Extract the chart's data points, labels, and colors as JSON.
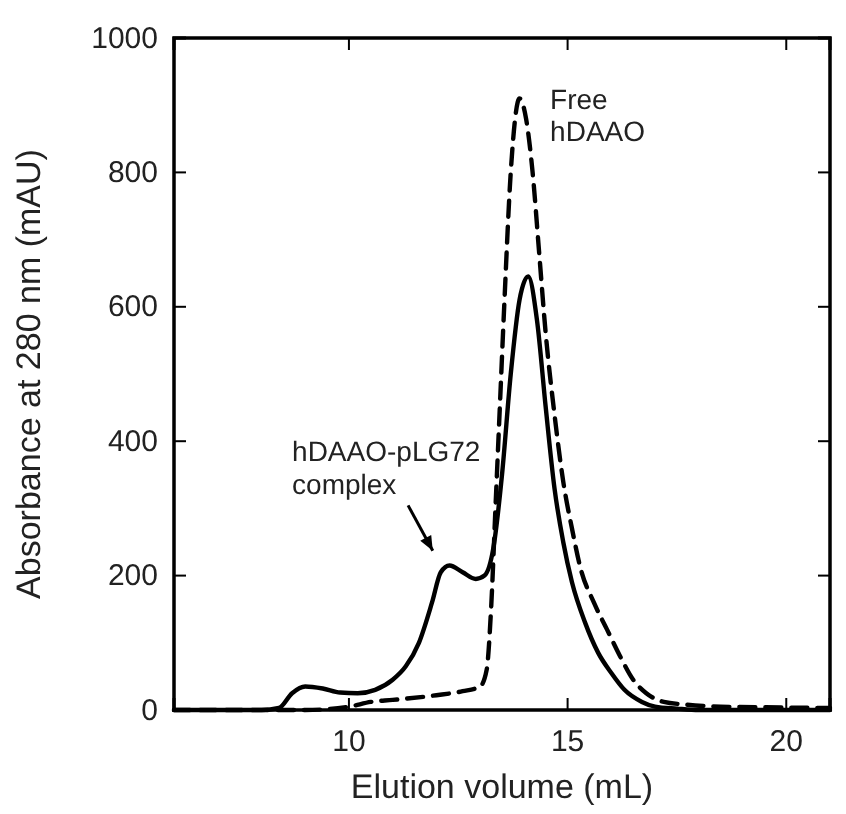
{
  "chart_data": {
    "type": "line",
    "xlabel": "Elution volume (mL)",
    "ylabel": "Absorbance at 280 nm (mAU)",
    "xlim": [
      6,
      21
    ],
    "xticks": [
      10,
      15,
      20
    ],
    "ylim": [
      0,
      1000
    ],
    "yticks": [
      0,
      200,
      400,
      600,
      800,
      1000
    ],
    "grid": false,
    "marker": "none",
    "series": [
      {
        "color": "#000000",
        "line_style": "solid",
        "x": [
          6,
          8,
          8.4,
          8.7,
          9,
          9.4,
          9.8,
          10.2,
          10.6,
          11,
          11.3,
          11.6,
          11.9,
          12.1,
          12.3,
          12.6,
          12.9,
          13.1,
          13.3,
          13.5,
          13.7,
          13.9,
          14.1,
          14.3,
          14.5,
          14.7,
          14.9,
          15.1,
          15.4,
          15.7,
          16,
          16.3,
          16.7,
          17,
          17.5,
          18,
          19,
          21
        ],
        "values": [
          0,
          0,
          3,
          25,
          35,
          32,
          26,
          25,
          30,
          45,
          65,
          100,
          160,
          205,
          215,
          205,
          195,
          200,
          240,
          350,
          500,
          610,
          645,
          580,
          450,
          330,
          250,
          190,
          130,
          85,
          55,
          30,
          12,
          5,
          2,
          0,
          0,
          0
        ]
      },
      {
        "color": "#000000",
        "line_style": "dashed",
        "x": [
          6,
          9,
          10,
          10.5,
          11,
          12,
          12.6,
          13,
          13.15,
          13.25,
          13.35,
          13.45,
          13.55,
          13.7,
          13.9,
          14.05,
          14.2,
          14.35,
          14.5,
          14.7,
          14.9,
          15.1,
          15.3,
          15.6,
          15.9,
          16.2,
          16.5,
          16.8,
          17.2,
          17.7,
          18.5,
          19.5,
          21
        ],
        "values": [
          0,
          0,
          5,
          12,
          15,
          22,
          28,
          35,
          60,
          150,
          300,
          450,
          600,
          800,
          910,
          880,
          800,
          680,
          560,
          440,
          340,
          270,
          210,
          160,
          120,
          80,
          45,
          25,
          12,
          8,
          5,
          4,
          3
        ]
      }
    ],
    "annotations": [
      "Free\nhDAAO",
      "hDAAO-pLG72\ncomplex"
    ]
  }
}
